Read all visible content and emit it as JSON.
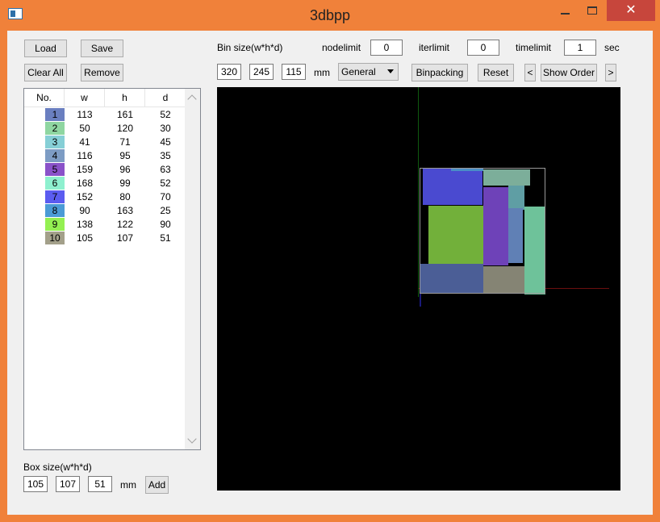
{
  "window": {
    "title": "3dbpp",
    "minimize_glyph": "",
    "close_glyph": "✕"
  },
  "toolbar_left": {
    "load_label": "Load",
    "save_label": "Save",
    "clear_all_label": "Clear All",
    "remove_label": "Remove"
  },
  "bin": {
    "label": "Bin size(w*h*d)",
    "w": "320",
    "h": "245",
    "d": "115",
    "unit": "mm"
  },
  "limits": {
    "nodelimit_label": "nodelimit",
    "nodelimit_value": "0",
    "iterlimit_label": "iterlimit",
    "iterlimit_value": "0",
    "timelimit_label": "timelimit",
    "timelimit_value": "1",
    "time_unit": "sec"
  },
  "controls": {
    "mode_selected": "General",
    "binpacking_label": "Binpacking",
    "reset_label": "Reset",
    "prev_label": "<",
    "show_order_label": "Show Order",
    "next_label": ">"
  },
  "table": {
    "headers": [
      "No.",
      "w",
      "h",
      "d"
    ],
    "rows": [
      {
        "no": "1",
        "w": "113",
        "h": "161",
        "d": "52",
        "color": "#6a7fc0"
      },
      {
        "no": "2",
        "w": "50",
        "h": "120",
        "d": "30",
        "color": "#8fd6a1"
      },
      {
        "no": "3",
        "w": "41",
        "h": "71",
        "d": "45",
        "color": "#86cfd6"
      },
      {
        "no": "4",
        "w": "116",
        "h": "95",
        "d": "35",
        "color": "#7d9cc4"
      },
      {
        "no": "5",
        "w": "159",
        "h": "96",
        "d": "63",
        "color": "#8a52c9"
      },
      {
        "no": "6",
        "w": "168",
        "h": "99",
        "d": "52",
        "color": "#8ef0cf"
      },
      {
        "no": "7",
        "w": "152",
        "h": "80",
        "d": "70",
        "color": "#5b5cf0"
      },
      {
        "no": "8",
        "w": "90",
        "h": "163",
        "d": "25",
        "color": "#4b9bd6"
      },
      {
        "no": "9",
        "w": "138",
        "h": "122",
        "d": "90",
        "color": "#94f052"
      },
      {
        "no": "10",
        "w": "105",
        "h": "107",
        "d": "51",
        "color": "#a3a08a"
      }
    ]
  },
  "boxsize": {
    "label": "Box size(w*h*d)",
    "w": "105",
    "h": "107",
    "d": "51",
    "unit": "mm",
    "add_label": "Add"
  },
  "viewport_colors": {
    "background": "#000000",
    "axis_x": "#6b0f0f",
    "axis_y": "#0f5a0f",
    "axis_z": "#1a1a7a",
    "bin_outline": "#9a9a9a"
  }
}
